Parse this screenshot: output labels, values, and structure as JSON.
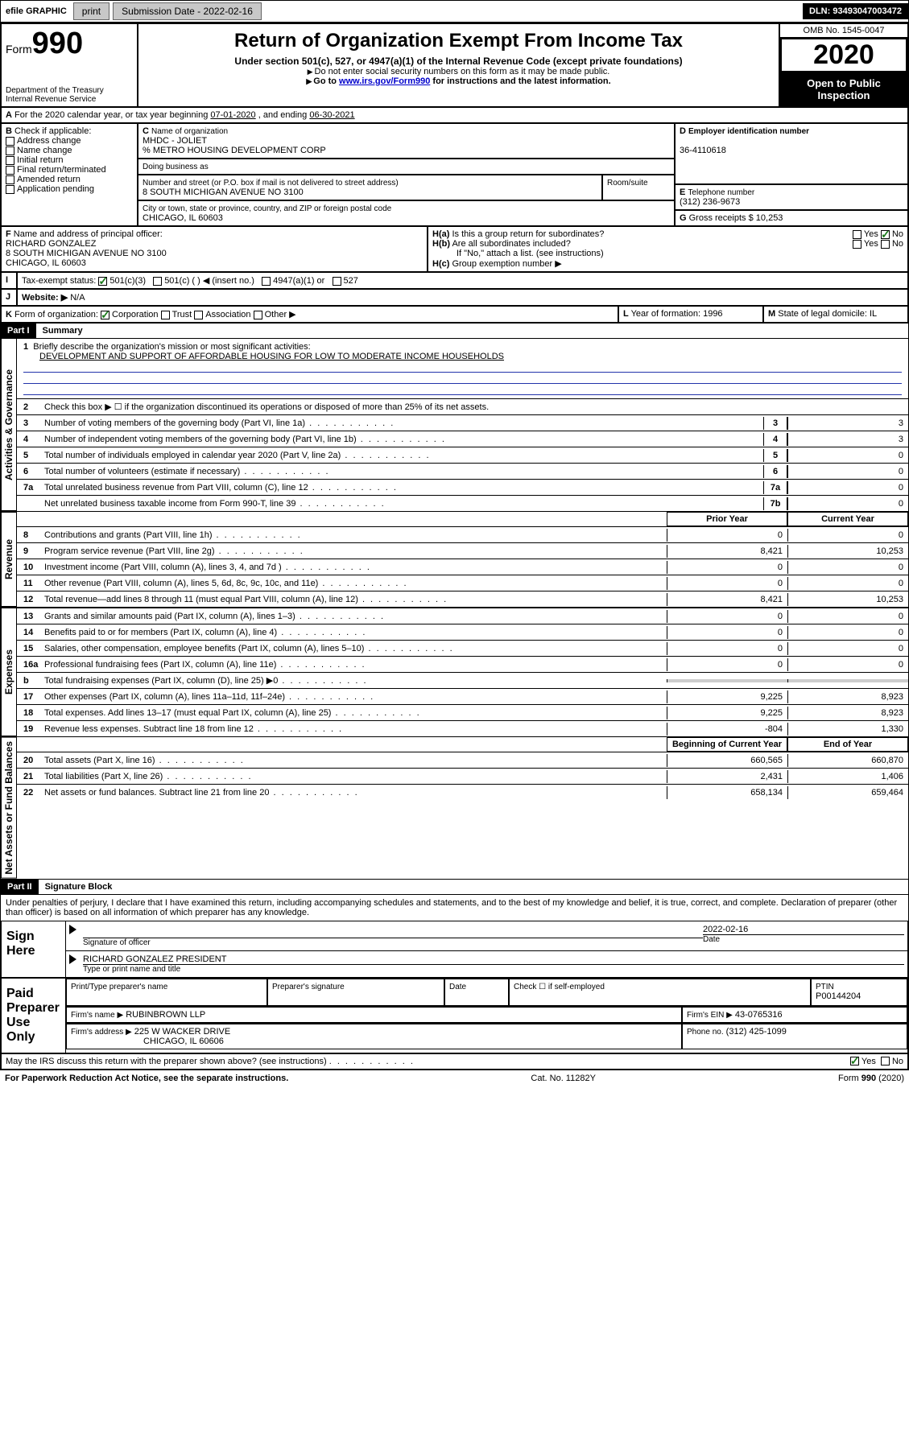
{
  "topbar": {
    "efile": "efile GRAPHIC",
    "print": "print",
    "sub_label": "Submission Date - ",
    "sub_date": "2022-02-16",
    "dln": "DLN: 93493047003472"
  },
  "header": {
    "form_prefix": "Form",
    "form_number": "990",
    "dept": "Department of the Treasury\nInternal Revenue Service",
    "title": "Return of Organization Exempt From Income Tax",
    "subtitle": "Under section 501(c), 527, or 4947(a)(1) of the Internal Revenue Code (except private foundations)",
    "note1": "Do not enter social security numbers on this form as it may be made public.",
    "note2_pre": "Go to ",
    "note2_link": "www.irs.gov/Form990",
    "note2_post": " for instructions and the latest information.",
    "omb": "OMB No. 1545-0047",
    "year": "2020",
    "inspection": "Open to Public Inspection"
  },
  "period": {
    "text_a": "For the 2020 calendar year, or tax year beginning ",
    "begin": "07-01-2020",
    "text_b": ", and ending ",
    "end": "06-30-2021"
  },
  "boxB": {
    "label": "Check if applicable:",
    "opts": [
      "Address change",
      "Name change",
      "Initial return",
      "Final return/terminated",
      "Amended return",
      "Application pending"
    ]
  },
  "boxC": {
    "name_label": "Name of organization",
    "name1": "MHDC - JOLIET",
    "name2": "% METRO HOUSING DEVELOPMENT CORP",
    "dba_label": "Doing business as",
    "street_label": "Number and street (or P.O. box if mail is not delivered to street address)",
    "room_label": "Room/suite",
    "street": "8 SOUTH MICHIGAN AVENUE NO 3100",
    "city_label": "City or town, state or province, country, and ZIP or foreign postal code",
    "city": "CHICAGO, IL  60603"
  },
  "boxD": {
    "label": "Employer identification number",
    "value": "36-4110618"
  },
  "boxE": {
    "label": "Telephone number",
    "value": "(312) 236-9673"
  },
  "boxG": {
    "label": "Gross receipts $",
    "value": "10,253"
  },
  "boxF": {
    "label": "Name and address of principal officer:",
    "name": "RICHARD GONZALEZ",
    "addr1": "8 SOUTH MICHIGAN AVENUE NO 3100",
    "addr2": "CHICAGO, IL  60603"
  },
  "boxH": {
    "a": "Is this a group return for subordinates?",
    "b": "Are all subordinates included?",
    "bnote": "If \"No,\" attach a list. (see instructions)",
    "c": "Group exemption number ▶"
  },
  "boxI": {
    "label": "Tax-exempt status:",
    "o1": "501(c)(3)",
    "o2": "501(c) (  ) ◀ (insert no.)",
    "o3": "4947(a)(1) or",
    "o4": "527"
  },
  "boxJ": {
    "label": "Website: ▶",
    "value": "N/A"
  },
  "boxK": {
    "label": "Form of organization:",
    "o1": "Corporation",
    "o2": "Trust",
    "o3": "Association",
    "o4": "Other ▶"
  },
  "boxL": {
    "label": "Year of formation:",
    "value": "1996"
  },
  "boxM": {
    "label": "State of legal domicile:",
    "value": "IL"
  },
  "part1": {
    "header": "Part I",
    "title": "Summary",
    "l1": "Briefly describe the organization's mission or most significant activities:",
    "l1v": "DEVELOPMENT AND SUPPORT OF AFFORDABLE HOUSING FOR LOW TO MODERATE INCOME HOUSEHOLDS",
    "l2": "Check this box ▶ ☐ if the organization discontinued its operations or disposed of more than 25% of its net assets.",
    "gov_label": "Activities & Governance",
    "rev_label": "Revenue",
    "exp_label": "Expenses",
    "net_label": "Net Assets or Fund Balances",
    "govrows": [
      {
        "n": "3",
        "t": "Number of voting members of the governing body (Part VI, line 1a)",
        "rn": "3",
        "v": "3"
      },
      {
        "n": "4",
        "t": "Number of independent voting members of the governing body (Part VI, line 1b)",
        "rn": "4",
        "v": "3"
      },
      {
        "n": "5",
        "t": "Total number of individuals employed in calendar year 2020 (Part V, line 2a)",
        "rn": "5",
        "v": "0"
      },
      {
        "n": "6",
        "t": "Total number of volunteers (estimate if necessary)",
        "rn": "6",
        "v": "0"
      },
      {
        "n": "7a",
        "t": "Total unrelated business revenue from Part VIII, column (C), line 12",
        "rn": "7a",
        "v": "0"
      },
      {
        "n": "",
        "t": "Net unrelated business taxable income from Form 990-T, line 39",
        "rn": "7b",
        "v": "0"
      }
    ],
    "col_prior": "Prior Year",
    "col_current": "Current Year",
    "revrows": [
      {
        "n": "8",
        "t": "Contributions and grants (Part VIII, line 1h)",
        "p": "0",
        "c": "0"
      },
      {
        "n": "9",
        "t": "Program service revenue (Part VIII, line 2g)",
        "p": "8,421",
        "c": "10,253"
      },
      {
        "n": "10",
        "t": "Investment income (Part VIII, column (A), lines 3, 4, and 7d )",
        "p": "0",
        "c": "0"
      },
      {
        "n": "11",
        "t": "Other revenue (Part VIII, column (A), lines 5, 6d, 8c, 9c, 10c, and 11e)",
        "p": "0",
        "c": "0"
      },
      {
        "n": "12",
        "t": "Total revenue—add lines 8 through 11 (must equal Part VIII, column (A), line 12)",
        "p": "8,421",
        "c": "10,253"
      }
    ],
    "exprows": [
      {
        "n": "13",
        "t": "Grants and similar amounts paid (Part IX, column (A), lines 1–3)",
        "p": "0",
        "c": "0"
      },
      {
        "n": "14",
        "t": "Benefits paid to or for members (Part IX, column (A), line 4)",
        "p": "0",
        "c": "0"
      },
      {
        "n": "15",
        "t": "Salaries, other compensation, employee benefits (Part IX, column (A), lines 5–10)",
        "p": "0",
        "c": "0"
      },
      {
        "n": "16a",
        "t": "Professional fundraising fees (Part IX, column (A), line 11e)",
        "p": "0",
        "c": "0"
      },
      {
        "n": "b",
        "t": "Total fundraising expenses (Part IX, column (D), line 25) ▶0",
        "p": "",
        "c": "",
        "shaded": true
      },
      {
        "n": "17",
        "t": "Other expenses (Part IX, column (A), lines 11a–11d, 11f–24e)",
        "p": "9,225",
        "c": "8,923"
      },
      {
        "n": "18",
        "t": "Total expenses. Add lines 13–17 (must equal Part IX, column (A), line 25)",
        "p": "9,225",
        "c": "8,923"
      },
      {
        "n": "19",
        "t": "Revenue less expenses. Subtract line 18 from line 12",
        "p": "-804",
        "c": "1,330"
      }
    ],
    "col_begin": "Beginning of Current Year",
    "col_end": "End of Year",
    "netrows": [
      {
        "n": "20",
        "t": "Total assets (Part X, line 16)",
        "p": "660,565",
        "c": "660,870"
      },
      {
        "n": "21",
        "t": "Total liabilities (Part X, line 26)",
        "p": "2,431",
        "c": "1,406"
      },
      {
        "n": "22",
        "t": "Net assets or fund balances. Subtract line 21 from line 20",
        "p": "658,134",
        "c": "659,464"
      }
    ]
  },
  "part2": {
    "header": "Part II",
    "title": "Signature Block",
    "decl": "Under penalties of perjury, I declare that I have examined this return, including accompanying schedules and statements, and to the best of my knowledge and belief, it is true, correct, and complete. Declaration of preparer (other than officer) is based on all information of which preparer has any knowledge.",
    "sign_here": "Sign Here",
    "sig_officer": "Signature of officer",
    "sig_date": "2022-02-16",
    "date_lbl": "Date",
    "officer_name": "RICHARD GONZALEZ  PRESIDENT",
    "type_lbl": "Type or print name and title",
    "paid": "Paid Preparer Use Only",
    "prep_name_lbl": "Print/Type preparer's name",
    "prep_sig_lbl": "Preparer's signature",
    "date2_lbl": "Date",
    "check_lbl": "Check ☐ if self-employed",
    "ptin_lbl": "PTIN",
    "ptin": "P00144204",
    "firm_name_lbl": "Firm's name   ▶",
    "firm_name": "RUBINBROWN LLP",
    "firm_ein_lbl": "Firm's EIN ▶",
    "firm_ein": "43-0765316",
    "firm_addr_lbl": "Firm's address ▶",
    "firm_addr1": "225 W WACKER DRIVE",
    "firm_addr2": "CHICAGO, IL  60606",
    "phone_lbl": "Phone no.",
    "phone": "(312) 425-1099",
    "discuss": "May the IRS discuss this return with the preparer shown above? (see instructions)"
  },
  "footer": {
    "left": "For Paperwork Reduction Act Notice, see the separate instructions.",
    "mid": "Cat. No. 11282Y",
    "right": "Form 990 (2020)"
  }
}
